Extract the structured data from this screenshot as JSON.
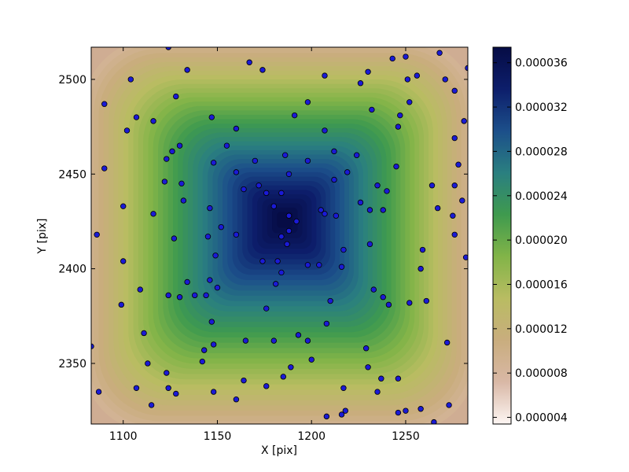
{
  "chart_data": {
    "type": "heatmap",
    "title": "",
    "xlabel": "X [pix]",
    "ylabel": "Y [pix]",
    "xlim": [
      1083,
      1283
    ],
    "ylim": [
      2318,
      2517
    ],
    "xticks": [
      1100,
      1150,
      1200,
      1250
    ],
    "xtick_labels": [
      "1100",
      "1150",
      "1200",
      "1250"
    ],
    "yticks": [
      2350,
      2400,
      2450,
      2500
    ],
    "ytick_labels": [
      "2350",
      "2400",
      "2450",
      "2500"
    ],
    "colorbar": {
      "range": [
        3.4e-06,
        3.74e-05
      ],
      "ticks": [
        4e-06,
        8e-06,
        1.2e-05,
        1.6e-05,
        2e-05,
        2.4e-05,
        2.8e-05,
        3.2e-05,
        3.6e-05
      ],
      "tick_labels": [
        "0.000004",
        "0.000008",
        "0.000012",
        "0.000016",
        "0.000020",
        "0.000024",
        "0.000028",
        "0.000032",
        "0.000036"
      ],
      "colormap_stops": [
        "#fdf6f3",
        "#d9b8a6",
        "#c9ad7e",
        "#b9bc62",
        "#82b448",
        "#3f9a4e",
        "#2a7f80",
        "#1c4f8a",
        "#0d1e6b",
        "#060c45"
      ]
    },
    "peak": {
      "x": 1186,
      "y": 2426
    },
    "point_color": "#1a1ad6",
    "points": [
      [
        1124,
        2517
      ],
      [
        1174,
        2505
      ],
      [
        1134,
        2505
      ],
      [
        1104,
        2500
      ],
      [
        1167,
        2509
      ],
      [
        1207,
        2502
      ],
      [
        1226,
        2498
      ],
      [
        1230,
        2504
      ],
      [
        1243,
        2511
      ],
      [
        1250,
        2512
      ],
      [
        1251,
        2500
      ],
      [
        1256,
        2502
      ],
      [
        1268,
        2514
      ],
      [
        1271,
        2500
      ],
      [
        1276,
        2494
      ],
      [
        1283,
        2506
      ],
      [
        1090,
        2487
      ],
      [
        1128,
        2491
      ],
      [
        1198,
        2488
      ],
      [
        1191,
        2481
      ],
      [
        1232,
        2484
      ],
      [
        1252,
        2488
      ],
      [
        1247,
        2481
      ],
      [
        1107,
        2480
      ],
      [
        1116,
        2478
      ],
      [
        1147,
        2480
      ],
      [
        1160,
        2474
      ],
      [
        1207,
        2473
      ],
      [
        1246,
        2475
      ],
      [
        1102,
        2473
      ],
      [
        1276,
        2469
      ],
      [
        1281,
        2478
      ],
      [
        1130,
        2465
      ],
      [
        1126,
        2462
      ],
      [
        1155,
        2465
      ],
      [
        1212,
        2462
      ],
      [
        1224,
        2460
      ],
      [
        1186,
        2460
      ],
      [
        1123,
        2458
      ],
      [
        1170,
        2457
      ],
      [
        1148,
        2456
      ],
      [
        1198,
        2457
      ],
      [
        1090,
        2453
      ],
      [
        1160,
        2451
      ],
      [
        1219,
        2451
      ],
      [
        1245,
        2454
      ],
      [
        1278,
        2455
      ],
      [
        1188,
        2450
      ],
      [
        1122,
        2446
      ],
      [
        1131,
        2445
      ],
      [
        1212,
        2447
      ],
      [
        1235,
        2444
      ],
      [
        1264,
        2444
      ],
      [
        1276,
        2444
      ],
      [
        1164,
        2442
      ],
      [
        1240,
        2441
      ],
      [
        1172,
        2444
      ],
      [
        1176,
        2440
      ],
      [
        1184,
        2440
      ],
      [
        1132,
        2436
      ],
      [
        1180,
        2433
      ],
      [
        1226,
        2435
      ],
      [
        1280,
        2436
      ],
      [
        1100,
        2433
      ],
      [
        1146,
        2432
      ],
      [
        1205,
        2431
      ],
      [
        1231,
        2431
      ],
      [
        1238,
        2431
      ],
      [
        1267,
        2432
      ],
      [
        1116,
        2429
      ],
      [
        1188,
        2428
      ],
      [
        1207,
        2429
      ],
      [
        1213,
        2428
      ],
      [
        1275,
        2428
      ],
      [
        1192,
        2425
      ],
      [
        1152,
        2422
      ],
      [
        1188,
        2420
      ],
      [
        1086,
        2418
      ],
      [
        1127,
        2416
      ],
      [
        1145,
        2417
      ],
      [
        1160,
        2418
      ],
      [
        1184,
        2417
      ],
      [
        1231,
        2413
      ],
      [
        1187,
        2413
      ],
      [
        1276,
        2418
      ],
      [
        1217,
        2410
      ],
      [
        1259,
        2410
      ],
      [
        1149,
        2407
      ],
      [
        1282,
        2406
      ],
      [
        1100,
        2404
      ],
      [
        1174,
        2404
      ],
      [
        1182,
        2404
      ],
      [
        1198,
        2402
      ],
      [
        1204,
        2402
      ],
      [
        1216,
        2401
      ],
      [
        1258,
        2400
      ],
      [
        1184,
        2398
      ],
      [
        1134,
        2393
      ],
      [
        1146,
        2394
      ],
      [
        1181,
        2392
      ],
      [
        1109,
        2389
      ],
      [
        1150,
        2390
      ],
      [
        1233,
        2389
      ],
      [
        1124,
        2386
      ],
      [
        1138,
        2386
      ],
      [
        1144,
        2386
      ],
      [
        1130,
        2385
      ],
      [
        1238,
        2385
      ],
      [
        1241,
        2381
      ],
      [
        1252,
        2382
      ],
      [
        1261,
        2383
      ],
      [
        1099,
        2381
      ],
      [
        1210,
        2383
      ],
      [
        1176,
        2379
      ],
      [
        1147,
        2372
      ],
      [
        1208,
        2371
      ],
      [
        1111,
        2366
      ],
      [
        1193,
        2365
      ],
      [
        1165,
        2362
      ],
      [
        1180,
        2362
      ],
      [
        1198,
        2362
      ],
      [
        1148,
        2360
      ],
      [
        1272,
        2361
      ],
      [
        1083,
        2359
      ],
      [
        1143,
        2357
      ],
      [
        1229,
        2358
      ],
      [
        1200,
        2352
      ],
      [
        1142,
        2351
      ],
      [
        1113,
        2350
      ],
      [
        1189,
        2348
      ],
      [
        1230,
        2348
      ],
      [
        1123,
        2345
      ],
      [
        1185,
        2343
      ],
      [
        1164,
        2341
      ],
      [
        1237,
        2342
      ],
      [
        1246,
        2342
      ],
      [
        1107,
        2337
      ],
      [
        1124,
        2337
      ],
      [
        1176,
        2338
      ],
      [
        1217,
        2337
      ],
      [
        1087,
        2335
      ],
      [
        1128,
        2334
      ],
      [
        1148,
        2335
      ],
      [
        1235,
        2335
      ],
      [
        1160,
        2331
      ],
      [
        1115,
        2328
      ],
      [
        1273,
        2328
      ],
      [
        1218,
        2325
      ],
      [
        1250,
        2325
      ],
      [
        1258,
        2326
      ],
      [
        1246,
        2324
      ],
      [
        1208,
        2322
      ],
      [
        1216,
        2323
      ],
      [
        1265,
        2319
      ]
    ]
  }
}
